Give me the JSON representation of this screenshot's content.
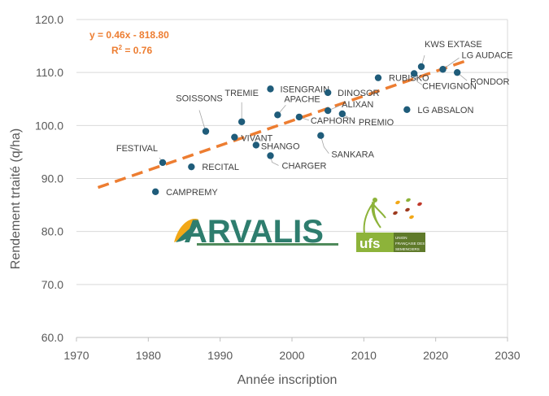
{
  "chart_data": {
    "type": "scatter",
    "xlabel": "Année inscription",
    "ylabel": "Rendement trtaité (q/ha)",
    "xlim": [
      1970,
      2030
    ],
    "ylim": [
      60,
      120
    ],
    "xticks": [
      "1970",
      "1980",
      "1990",
      "2000",
      "2010",
      "2020",
      "2030"
    ],
    "yticks": [
      "60.0",
      "70.0",
      "80.0",
      "90.0",
      "100.0",
      "110.0",
      "120.0"
    ],
    "grid": "horizontal",
    "marker_color": "#1F5C7A",
    "trend_color": "#ED7D31",
    "points": [
      {
        "label": "CAMPREMY",
        "x": 1981,
        "y": 87.5
      },
      {
        "label": "FESTIVAL",
        "x": 1982,
        "y": 93.0
      },
      {
        "label": "RECITAL",
        "x": 1986,
        "y": 92.2
      },
      {
        "label": "SOISSONS",
        "x": 1988,
        "y": 98.9
      },
      {
        "label": "VIVANT",
        "x": 1992,
        "y": 97.8
      },
      {
        "label": "TREMIE",
        "x": 1993,
        "y": 100.7
      },
      {
        "label": "SHANGO",
        "x": 1995,
        "y": 96.3
      },
      {
        "label": "CHARGER",
        "x": 1997,
        "y": 94.3
      },
      {
        "label": "ISENGRAIN",
        "x": 1997,
        "y": 106.9
      },
      {
        "label": "APACHE",
        "x": 1998,
        "y": 102.0
      },
      {
        "label": "CAPHORN",
        "x": 2001,
        "y": 101.6
      },
      {
        "label": "SANKARA",
        "x": 2004,
        "y": 98.1
      },
      {
        "label": "DINOSOR",
        "x": 2005,
        "y": 106.2
      },
      {
        "label": "ALIXAN",
        "x": 2005,
        "y": 102.8
      },
      {
        "label": "PREMIO",
        "x": 2007,
        "y": 102.2
      },
      {
        "label": "RUBISKO",
        "x": 2012,
        "y": 109.0
      },
      {
        "label": "LG ABSALON",
        "x": 2016,
        "y": 103.0
      },
      {
        "label": "CHEVIGNON",
        "x": 2017,
        "y": 109.8
      },
      {
        "label": "KWS EXTASE",
        "x": 2018,
        "y": 111.1
      },
      {
        "label": "LG AUDACE",
        "x": 2021,
        "y": 110.6
      },
      {
        "label": "PONDOR",
        "x": 2023,
        "y": 110.0
      }
    ],
    "trendline": {
      "equation": "y = 0.46x - 818.80",
      "r2_prefix": "R",
      "r2_sup": "2",
      "r2_suffix": " = 0.76",
      "x_start": 1973,
      "x_end": 2024,
      "y_start": 88.3,
      "y_end": 112.1
    }
  },
  "logos": {
    "arvalis": {
      "text": "ARVALIS",
      "colors": {
        "text": "#2E7D6E",
        "leaf": "#F2A818",
        "bar": "#4F8A5B"
      }
    },
    "ufs": {
      "text": "ufs",
      "subtitle_lines": [
        "UNION",
        "FRANÇAISE DES",
        "SEMENCIERS"
      ],
      "colors": {
        "bg": "#8DB33A",
        "box": "#5F7A2A",
        "dot1": "#F2A818",
        "dot2": "#C0392B",
        "dot3": "#8DB33A",
        "dot4": "#9E3B1F"
      }
    }
  }
}
